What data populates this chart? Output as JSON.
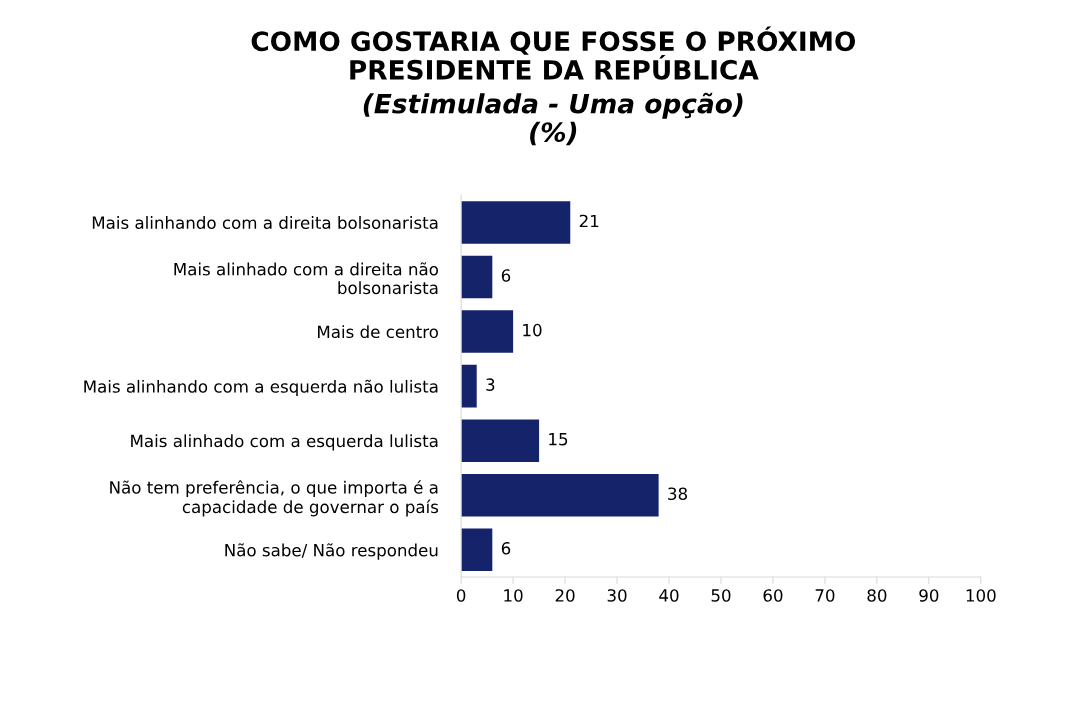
{
  "chart_data": {
    "type": "bar",
    "orientation": "horizontal",
    "title": "COMO GOSTARIA QUE FOSSE O PRÓXIMO\nPRESIDENTE DA REPÚBLICA",
    "subtitle": "(Estimulada - Uma opção)\n(%)",
    "categories": [
      "Mais alinhando com a direita bolsonarista",
      "Mais alinhado com a direita não\nbolsonarista",
      "Mais de centro",
      "Mais alinhando com a esquerda não lulista",
      "Mais alinhado com a esquerda lulista",
      "Não tem preferência, o que importa é a\ncapacidade de governar o país",
      "Não sabe/ Não respondeu"
    ],
    "values": [
      21,
      6,
      10,
      3,
      15,
      38,
      6
    ],
    "color": "#15236a",
    "xlim": [
      0,
      100
    ],
    "xticks": [
      0,
      10,
      20,
      30,
      40,
      50,
      60,
      70,
      80,
      90,
      100
    ],
    "data_labels": true,
    "grid": false,
    "legend": false
  }
}
